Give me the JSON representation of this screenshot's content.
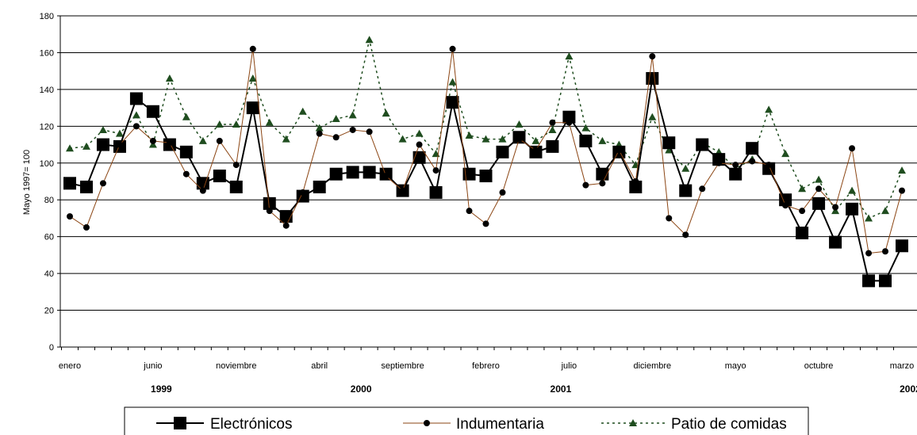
{
  "chart_data": {
    "type": "line",
    "title": "",
    "xlabel": "",
    "ylabel": "Mayo 1997= 100",
    "ylim": [
      0,
      180
    ],
    "yticks": [
      0,
      20,
      40,
      60,
      80,
      100,
      120,
      140,
      160,
      180
    ],
    "grid": true,
    "legend_position": "bottom",
    "x_tick_labels": [
      {
        "index": 0,
        "label": "enero"
      },
      {
        "index": 5,
        "label": "junio"
      },
      {
        "index": 10,
        "label": "noviembre"
      },
      {
        "index": 15,
        "label": "abril"
      },
      {
        "index": 20,
        "label": "septiembre"
      },
      {
        "index": 25,
        "label": "febrero"
      },
      {
        "index": 30,
        "label": "julio"
      },
      {
        "index": 35,
        "label": "diciembre"
      },
      {
        "index": 40,
        "label": "mayo"
      },
      {
        "index": 45,
        "label": "octubre"
      },
      {
        "index": 50,
        "label": "marzo"
      }
    ],
    "years": [
      {
        "index": 5.5,
        "label": "1999"
      },
      {
        "index": 17.5,
        "label": "2000"
      },
      {
        "index": 29.5,
        "label": "2001"
      },
      {
        "index": 50.5,
        "label": "2002"
      }
    ],
    "series": [
      {
        "name": "Electrónicos",
        "color": "#000000",
        "marker": "square",
        "values": [
          89,
          87,
          110,
          109,
          135,
          128,
          110,
          106,
          89,
          93,
          87,
          130,
          78,
          71,
          82,
          87,
          94,
          95,
          95,
          94,
          85,
          103,
          84,
          133,
          94,
          93,
          106,
          114,
          106,
          109,
          125,
          112,
          94,
          106,
          87,
          146,
          111,
          85,
          110,
          102,
          94,
          108,
          97,
          80,
          62,
          78,
          57,
          75,
          36,
          36,
          55
        ]
      },
      {
        "name": "Indumentaria",
        "color": "#8b4513",
        "marker": "circle",
        "values": [
          71,
          65,
          89,
          110,
          120,
          112,
          111,
          94,
          85,
          112,
          99,
          162,
          74,
          66,
          84,
          116,
          114,
          118,
          117,
          93,
          85,
          110,
          96,
          162,
          74,
          67,
          84,
          113,
          107,
          122,
          122,
          88,
          89,
          107,
          90,
          158,
          70,
          61,
          86,
          100,
          99,
          101,
          99,
          77,
          74,
          86,
          76,
          108,
          51,
          52,
          85
        ]
      },
      {
        "name": "Patio de comidas",
        "color": "#1f4d1f",
        "marker": "triangle",
        "values": [
          108,
          109,
          118,
          116,
          126,
          110,
          146,
          125,
          112,
          121,
          121,
          146,
          122,
          113,
          128,
          119,
          124,
          126,
          167,
          127,
          113,
          116,
          105,
          144,
          115,
          113,
          113,
          121,
          112,
          118,
          158,
          119,
          112,
          110,
          99,
          125,
          107,
          97,
          111,
          106,
          97,
          102,
          129,
          105,
          86,
          91,
          74,
          85,
          70,
          74,
          96
        ]
      }
    ]
  }
}
